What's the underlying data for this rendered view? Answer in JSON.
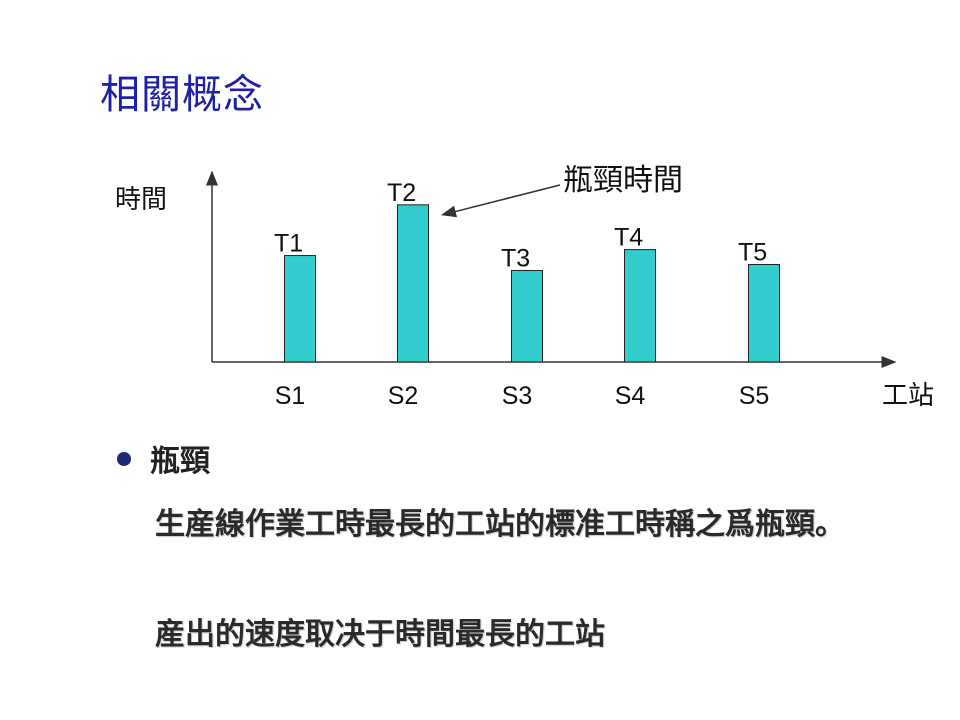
{
  "slide": {
    "title": "相關概念",
    "bullet": {
      "heading": "瓶頸",
      "paragraphs": [
        "生産線作業工時最長的工站的標准工時稱之爲瓶頸。",
        "産出的速度取决于時間最長的工站"
      ]
    }
  },
  "chart_data": {
    "type": "bar",
    "categories": [
      "S1",
      "S2",
      "S3",
      "S4",
      "S5"
    ],
    "bar_labels": [
      "T1",
      "T2",
      "T3",
      "T4",
      "T5"
    ],
    "values": [
      107,
      158,
      92,
      113,
      98
    ],
    "ylim": [
      0,
      195
    ],
    "xlabel": "工站",
    "ylabel": "時間",
    "annotation": {
      "text": "瓶頸時間",
      "target_index": 1
    },
    "bar_color": "#33cccc",
    "grid": false
  }
}
